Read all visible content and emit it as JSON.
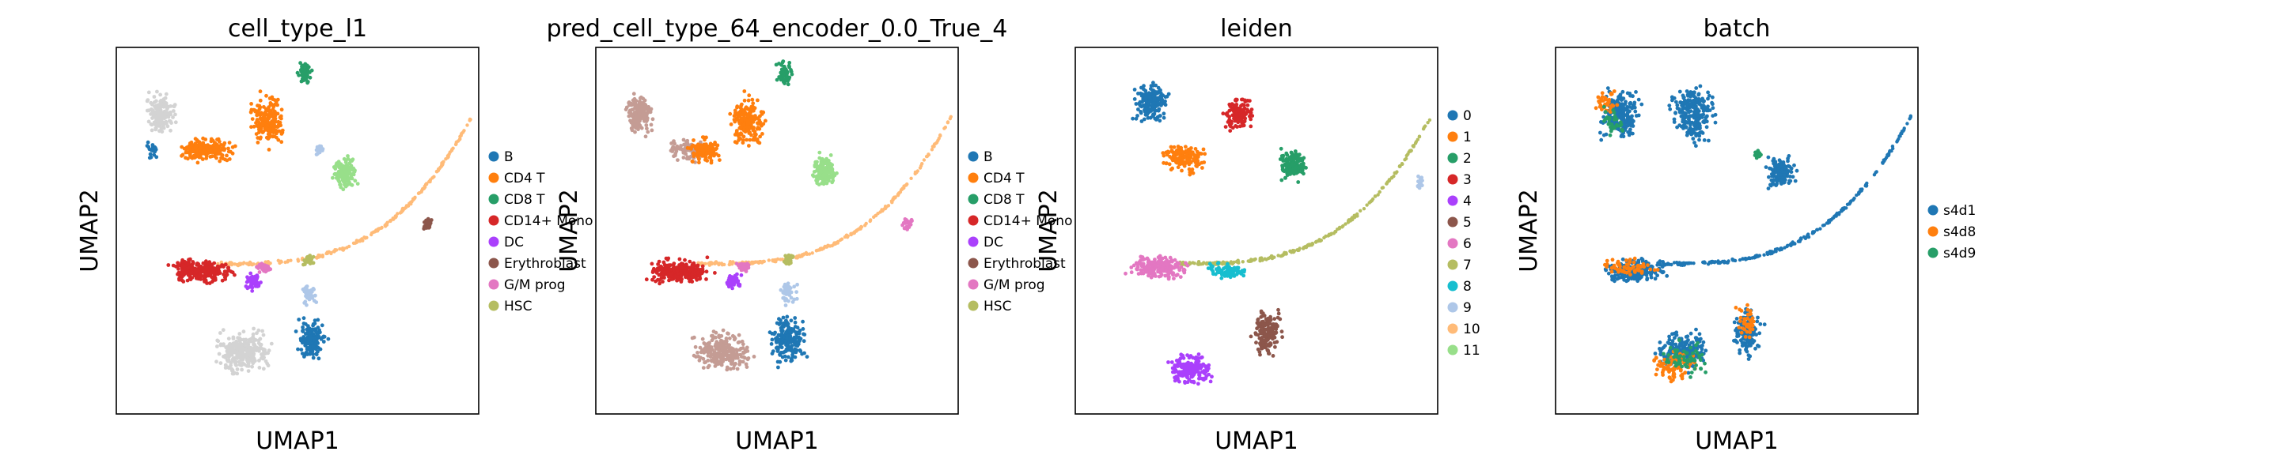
{
  "chart_data": [
    {
      "type": "scatter",
      "title": "cell_type_l1",
      "xlabel": "UMAP1",
      "ylabel": "UMAP2",
      "grid": false,
      "legend_position": "right",
      "legend": [
        {
          "label": "B",
          "color": "#1f77b4"
        },
        {
          "label": "CD4 T",
          "color": "#ff7f0e"
        },
        {
          "label": "CD8 T",
          "color": "#279e68"
        },
        {
          "label": "CD14+ Mono",
          "color": "#d62728"
        },
        {
          "label": "DC",
          "color": "#aa40fc"
        },
        {
          "label": "Erythroblast",
          "color": "#8c564b"
        },
        {
          "label": "G/M prog",
          "color": "#e377c2"
        },
        {
          "label": "HSC",
          "color": "#b5bd61"
        }
      ],
      "clusters": [
        {
          "cat": "#d3d3d3",
          "x": 0.12,
          "y": 0.82,
          "rx": 0.05,
          "ry": 0.07,
          "n": 160
        },
        {
          "cat": "#d3d3d3",
          "x": 0.35,
          "y": 0.17,
          "rx": 0.1,
          "ry": 0.07,
          "n": 280
        },
        {
          "cat": "#aec7e8",
          "x": 0.53,
          "y": 0.33,
          "rx": 0.03,
          "ry": 0.04,
          "n": 40
        },
        {
          "cat": "#1f77b4",
          "x": 0.54,
          "y": 0.2,
          "rx": 0.05,
          "ry": 0.07,
          "n": 140
        },
        {
          "cat": "#1f77b4",
          "x": 0.1,
          "y": 0.72,
          "rx": 0.02,
          "ry": 0.03,
          "n": 20
        },
        {
          "cat": "#ff7f0e",
          "x": 0.25,
          "y": 0.72,
          "rx": 0.1,
          "ry": 0.04,
          "n": 200
        },
        {
          "cat": "#ff7f0e",
          "x": 0.42,
          "y": 0.8,
          "rx": 0.06,
          "ry": 0.09,
          "n": 200
        },
        {
          "cat": "#279e68",
          "x": 0.52,
          "y": 0.93,
          "rx": 0.025,
          "ry": 0.04,
          "n": 60
        },
        {
          "cat": "#98df8a",
          "x": 0.63,
          "y": 0.66,
          "rx": 0.04,
          "ry": 0.06,
          "n": 140
        },
        {
          "cat": "#aec7e8",
          "x": 0.56,
          "y": 0.72,
          "rx": 0.015,
          "ry": 0.02,
          "n": 20
        },
        {
          "cat": "#d62728",
          "x": 0.23,
          "y": 0.39,
          "rx": 0.11,
          "ry": 0.04,
          "n": 260
        },
        {
          "cat": "#aa40fc",
          "x": 0.38,
          "y": 0.36,
          "rx": 0.03,
          "ry": 0.03,
          "n": 50
        },
        {
          "cat": "#e377c2",
          "x": 0.41,
          "y": 0.4,
          "rx": 0.03,
          "ry": 0.015,
          "n": 40
        },
        {
          "cat": "#b5bd61",
          "x": 0.53,
          "y": 0.42,
          "rx": 0.02,
          "ry": 0.02,
          "n": 30
        },
        {
          "cat": "#8c564b",
          "x": 0.86,
          "y": 0.52,
          "rx": 0.02,
          "ry": 0.02,
          "n": 30
        }
      ],
      "tail": {
        "cat": "#ffbb78",
        "n": 220
      }
    },
    {
      "type": "scatter",
      "title": "pred_cell_type_64_encoder_0.0_True_4",
      "xlabel": "UMAP1",
      "ylabel": "UMAP2",
      "grid": false,
      "legend_position": "right",
      "legend": [
        {
          "label": "B",
          "color": "#1f77b4"
        },
        {
          "label": "CD4 T",
          "color": "#ff7f0e"
        },
        {
          "label": "CD8 T",
          "color": "#279e68"
        },
        {
          "label": "CD14+ Mono",
          "color": "#d62728"
        },
        {
          "label": "DC",
          "color": "#aa40fc"
        },
        {
          "label": "Erythroblast",
          "color": "#8c564b"
        },
        {
          "label": "G/M prog",
          "color": "#e377c2"
        },
        {
          "label": "HSC",
          "color": "#b5bd61"
        }
      ],
      "clusters": [
        {
          "cat": "#c49c94",
          "x": 0.12,
          "y": 0.82,
          "rx": 0.05,
          "ry": 0.07,
          "n": 160
        },
        {
          "cat": "#c49c94",
          "x": 0.35,
          "y": 0.17,
          "rx": 0.1,
          "ry": 0.07,
          "n": 240
        },
        {
          "cat": "#1f77b4",
          "x": 0.53,
          "y": 0.2,
          "rx": 0.06,
          "ry": 0.08,
          "n": 180
        },
        {
          "cat": "#aec7e8",
          "x": 0.53,
          "y": 0.33,
          "rx": 0.03,
          "ry": 0.04,
          "n": 40
        },
        {
          "cat": "#c49c94",
          "x": 0.25,
          "y": 0.72,
          "rx": 0.06,
          "ry": 0.04,
          "n": 80
        },
        {
          "cat": "#ff7f0e",
          "x": 0.3,
          "y": 0.72,
          "rx": 0.06,
          "ry": 0.04,
          "n": 120
        },
        {
          "cat": "#ff7f0e",
          "x": 0.42,
          "y": 0.8,
          "rx": 0.06,
          "ry": 0.09,
          "n": 200
        },
        {
          "cat": "#279e68",
          "x": 0.52,
          "y": 0.93,
          "rx": 0.025,
          "ry": 0.04,
          "n": 60
        },
        {
          "cat": "#98df8a",
          "x": 0.63,
          "y": 0.66,
          "rx": 0.04,
          "ry": 0.06,
          "n": 140
        },
        {
          "cat": "#d62728",
          "x": 0.23,
          "y": 0.39,
          "rx": 0.11,
          "ry": 0.04,
          "n": 260
        },
        {
          "cat": "#aa40fc",
          "x": 0.38,
          "y": 0.36,
          "rx": 0.03,
          "ry": 0.03,
          "n": 50
        },
        {
          "cat": "#e377c2",
          "x": 0.41,
          "y": 0.4,
          "rx": 0.03,
          "ry": 0.015,
          "n": 40
        },
        {
          "cat": "#b5bd61",
          "x": 0.53,
          "y": 0.42,
          "rx": 0.02,
          "ry": 0.02,
          "n": 30
        },
        {
          "cat": "#e377c2",
          "x": 0.86,
          "y": 0.52,
          "rx": 0.02,
          "ry": 0.02,
          "n": 30
        }
      ],
      "tail": {
        "cat": "#ffbb78",
        "n": 220
      }
    },
    {
      "type": "scatter",
      "title": "leiden",
      "xlabel": "UMAP1",
      "ylabel": "UMAP2",
      "grid": false,
      "legend_position": "right",
      "legend": [
        {
          "label": "0",
          "color": "#1f77b4"
        },
        {
          "label": "1",
          "color": "#ff7f0e"
        },
        {
          "label": "2",
          "color": "#279e68"
        },
        {
          "label": "3",
          "color": "#d62728"
        },
        {
          "label": "4",
          "color": "#aa40fc"
        },
        {
          "label": "5",
          "color": "#8c564b"
        },
        {
          "label": "6",
          "color": "#e377c2"
        },
        {
          "label": "7",
          "color": "#b5bd61"
        },
        {
          "label": "8",
          "color": "#17becf"
        },
        {
          "label": "9",
          "color": "#aec7e8"
        },
        {
          "label": "10",
          "color": "#ffbb78"
        },
        {
          "label": "11",
          "color": "#98df8a"
        }
      ],
      "clusters": [
        {
          "cat": "#1f77b4",
          "x": 0.21,
          "y": 0.85,
          "rx": 0.06,
          "ry": 0.07,
          "n": 200
        },
        {
          "cat": "#ff7f0e",
          "x": 0.3,
          "y": 0.7,
          "rx": 0.07,
          "ry": 0.05,
          "n": 150
        },
        {
          "cat": "#d62728",
          "x": 0.45,
          "y": 0.82,
          "rx": 0.05,
          "ry": 0.06,
          "n": 140
        },
        {
          "cat": "#279e68",
          "x": 0.6,
          "y": 0.68,
          "rx": 0.05,
          "ry": 0.06,
          "n": 150
        },
        {
          "cat": "#e377c2",
          "x": 0.23,
          "y": 0.4,
          "rx": 0.1,
          "ry": 0.04,
          "n": 200
        },
        {
          "cat": "#17becf",
          "x": 0.42,
          "y": 0.39,
          "rx": 0.06,
          "ry": 0.025,
          "n": 90
        },
        {
          "cat": "#8c564b",
          "x": 0.53,
          "y": 0.22,
          "rx": 0.05,
          "ry": 0.08,
          "n": 160
        },
        {
          "cat": "#aa40fc",
          "x": 0.32,
          "y": 0.12,
          "rx": 0.08,
          "ry": 0.05,
          "n": 200
        },
        {
          "cat": "#aec7e8",
          "x": 0.95,
          "y": 0.63,
          "rx": 0.015,
          "ry": 0.025,
          "n": 20
        }
      ],
      "tail": {
        "cat": "#b5bd61",
        "n": 260
      }
    },
    {
      "type": "scatter",
      "title": "batch",
      "xlabel": "UMAP1",
      "ylabel": "UMAP2",
      "grid": false,
      "legend_position": "right",
      "legend": [
        {
          "label": "s4d1",
          "color": "#1f77b4"
        },
        {
          "label": "s4d8",
          "color": "#ff7f0e"
        },
        {
          "label": "s4d9",
          "color": "#279e68"
        }
      ],
      "clusters": [
        {
          "cat": "#1f77b4",
          "x": 0.18,
          "y": 0.82,
          "rx": 0.07,
          "ry": 0.08,
          "n": 200
        },
        {
          "cat": "#ff7f0e",
          "x": 0.14,
          "y": 0.85,
          "rx": 0.04,
          "ry": 0.05,
          "n": 40
        },
        {
          "cat": "#279e68",
          "x": 0.16,
          "y": 0.8,
          "rx": 0.04,
          "ry": 0.05,
          "n": 30
        },
        {
          "cat": "#1f77b4",
          "x": 0.38,
          "y": 0.82,
          "rx": 0.08,
          "ry": 0.1,
          "n": 240
        },
        {
          "cat": "#1f77b4",
          "x": 0.62,
          "y": 0.66,
          "rx": 0.05,
          "ry": 0.06,
          "n": 140
        },
        {
          "cat": "#279e68",
          "x": 0.56,
          "y": 0.71,
          "rx": 0.015,
          "ry": 0.02,
          "n": 20
        },
        {
          "cat": "#1f77b4",
          "x": 0.22,
          "y": 0.39,
          "rx": 0.11,
          "ry": 0.04,
          "n": 220
        },
        {
          "cat": "#ff7f0e",
          "x": 0.2,
          "y": 0.4,
          "rx": 0.09,
          "ry": 0.03,
          "n": 60
        },
        {
          "cat": "#1f77b4",
          "x": 0.35,
          "y": 0.17,
          "rx": 0.09,
          "ry": 0.07,
          "n": 200
        },
        {
          "cat": "#ff7f0e",
          "x": 0.33,
          "y": 0.13,
          "rx": 0.08,
          "ry": 0.05,
          "n": 90
        },
        {
          "cat": "#279e68",
          "x": 0.36,
          "y": 0.15,
          "rx": 0.08,
          "ry": 0.06,
          "n": 60
        },
        {
          "cat": "#1f77b4",
          "x": 0.53,
          "y": 0.22,
          "rx": 0.05,
          "ry": 0.08,
          "n": 140
        },
        {
          "cat": "#ff7f0e",
          "x": 0.53,
          "y": 0.25,
          "rx": 0.04,
          "ry": 0.06,
          "n": 40
        }
      ],
      "tail": {
        "cat": "#1f77b4",
        "n": 240
      }
    }
  ]
}
